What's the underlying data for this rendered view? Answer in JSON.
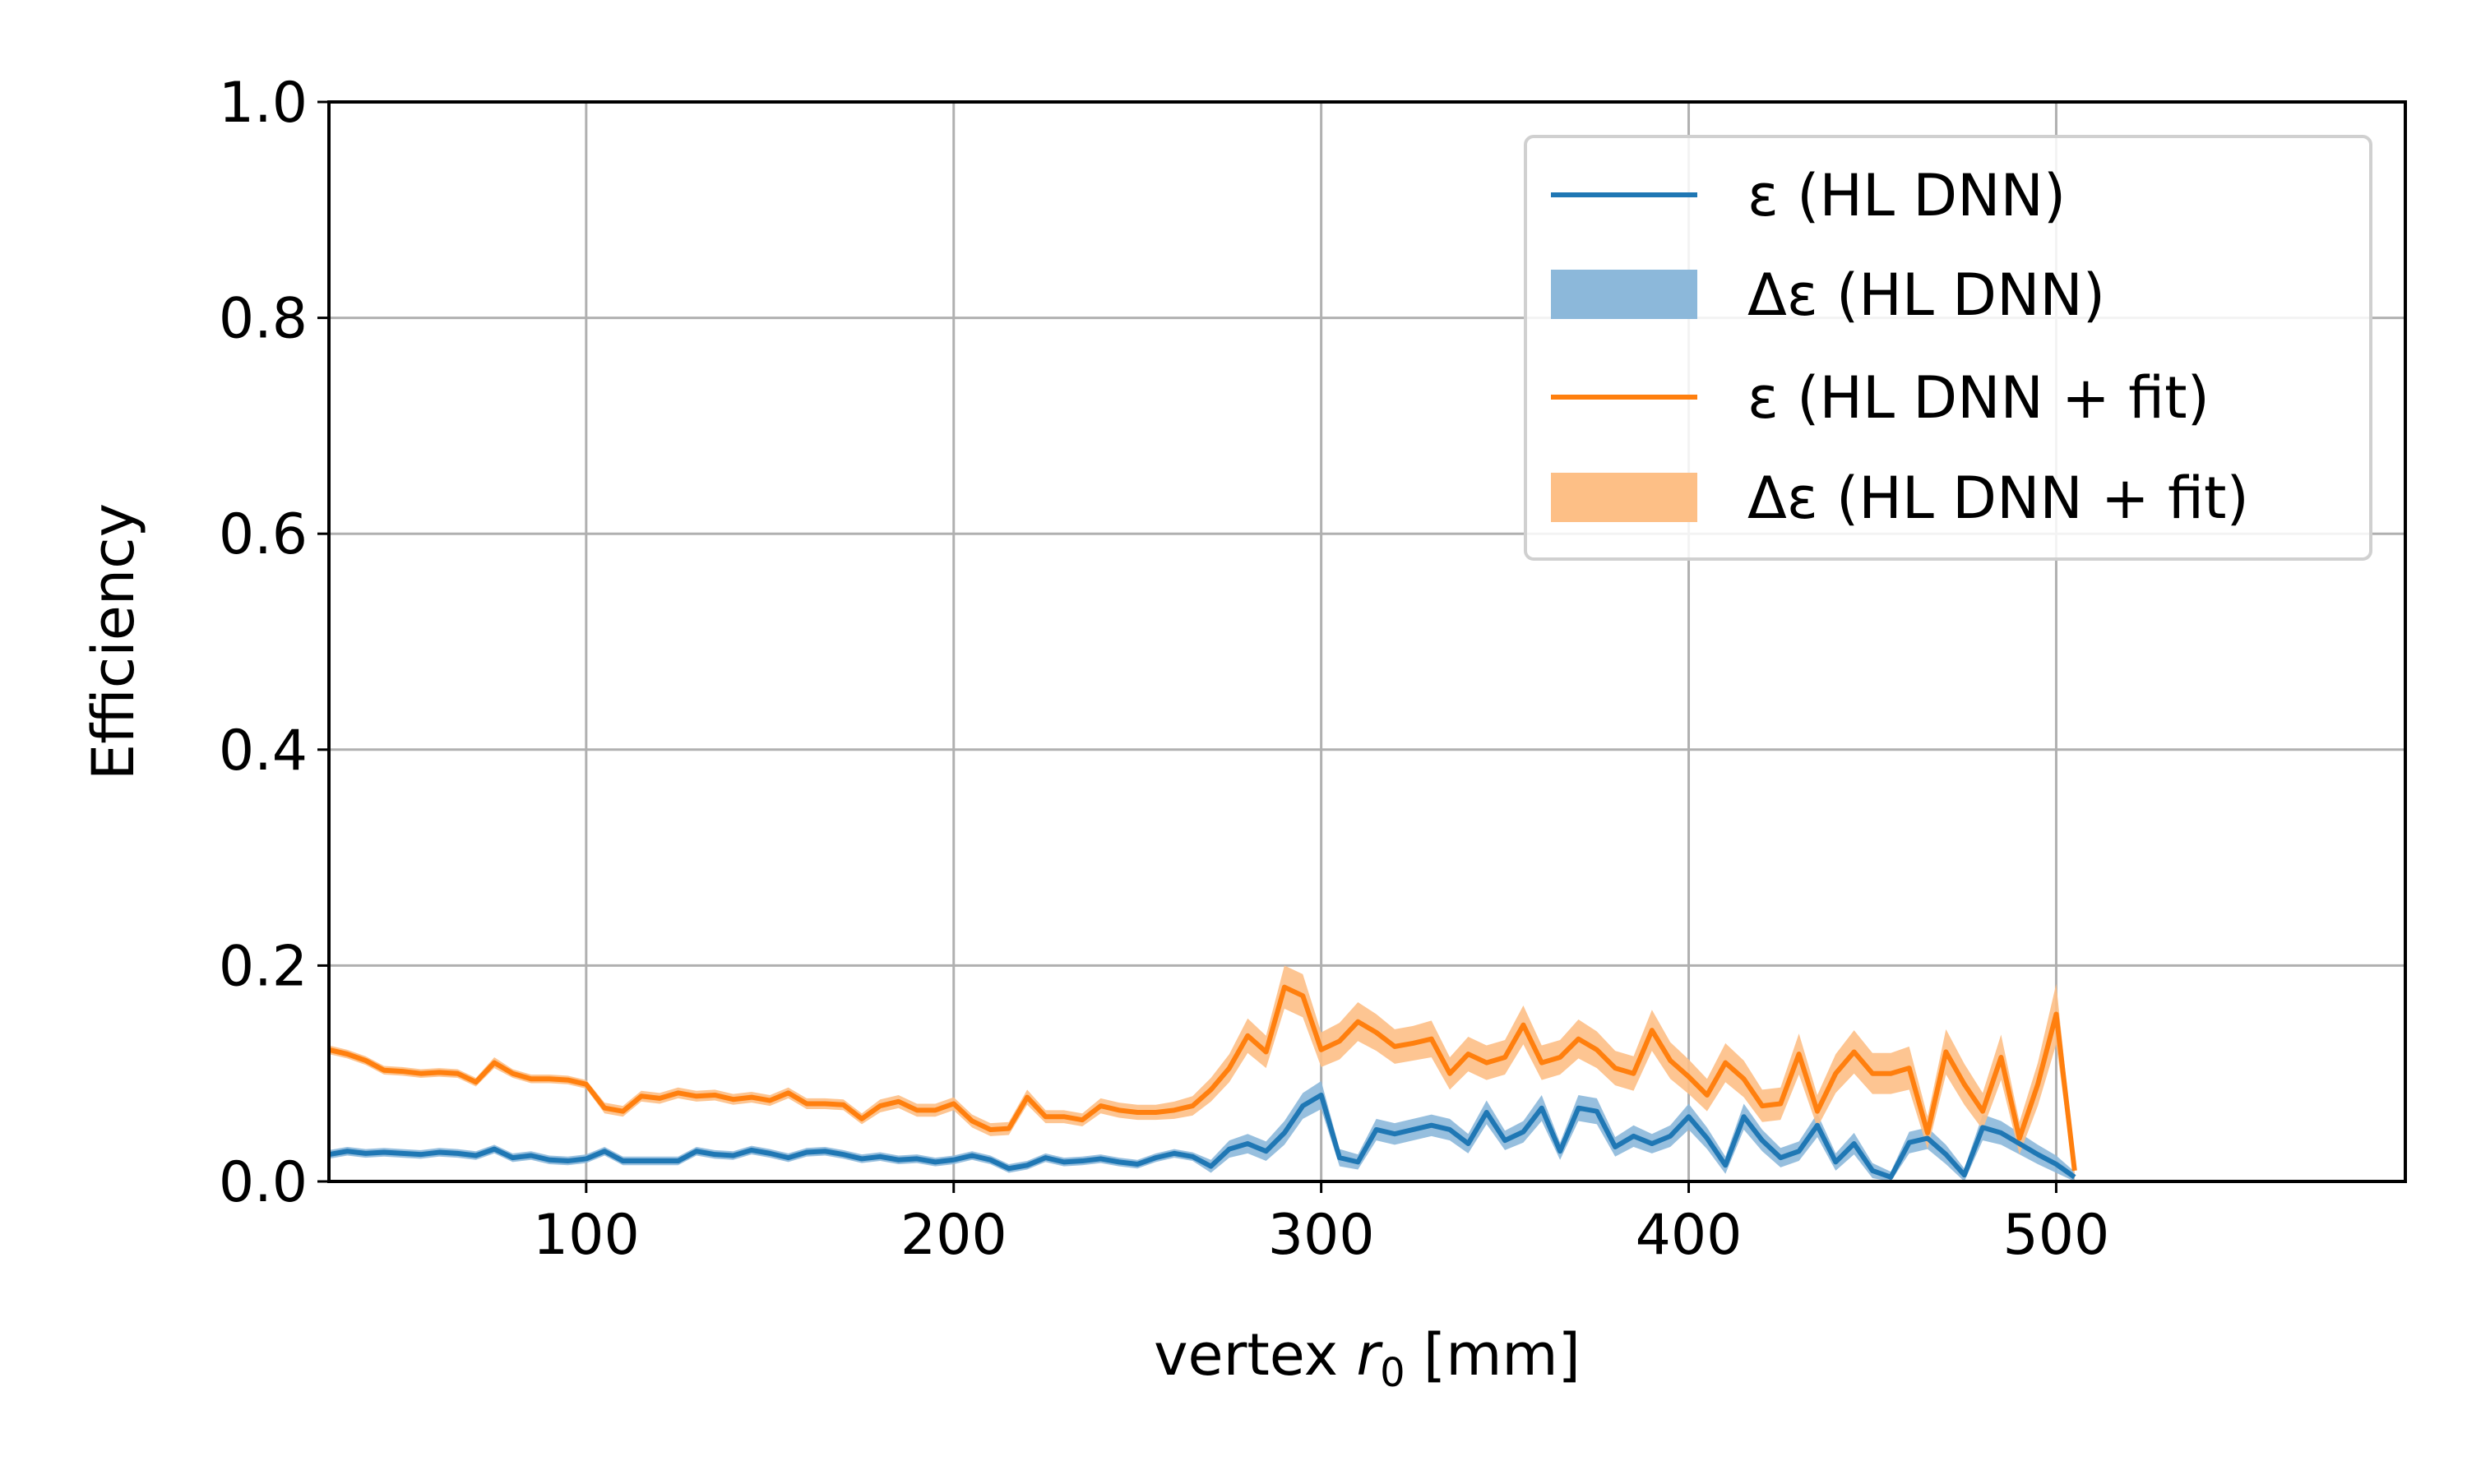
{
  "chart_data": {
    "type": "line",
    "title": "",
    "xlabel_prefix": "vertex ",
    "xlabel_var": "r",
    "xlabel_sub": "0",
    "xlabel_suffix": " [mm]",
    "ylabel": "Efficiency",
    "xlim": [
      30,
      595
    ],
    "ylim": [
      0,
      1
    ],
    "xticks": [
      100,
      200,
      300,
      400,
      500
    ],
    "xtick_labels": [
      "100",
      "200",
      "300",
      "400",
      "500"
    ],
    "yticks": [
      0,
      0.2,
      0.4,
      0.6,
      0.8,
      1.0
    ],
    "ytick_labels": [
      "0.0",
      "0.2",
      "0.4",
      "0.6",
      "0.8",
      "1.0"
    ],
    "grid": true,
    "legend_placement": "top-right",
    "x_start": 30,
    "x_step": 5,
    "series": [
      {
        "name": "ε (HL DNN)",
        "band_name": "Δε (HL DNN)",
        "color": "#1f77b4",
        "band_color": "#8cb8da",
        "values": [
          0.025,
          0.028,
          0.026,
          0.027,
          0.026,
          0.025,
          0.027,
          0.026,
          0.024,
          0.03,
          0.022,
          0.024,
          0.02,
          0.019,
          0.021,
          0.028,
          0.019,
          0.019,
          0.019,
          0.019,
          0.028,
          0.025,
          0.024,
          0.029,
          0.026,
          0.022,
          0.027,
          0.028,
          0.025,
          0.021,
          0.023,
          0.02,
          0.021,
          0.018,
          0.02,
          0.024,
          0.02,
          0.012,
          0.015,
          0.022,
          0.018,
          0.019,
          0.021,
          0.018,
          0.016,
          0.022,
          0.026,
          0.023,
          0.014,
          0.03,
          0.035,
          0.028,
          0.045,
          0.07,
          0.08,
          0.022,
          0.018,
          0.048,
          0.044,
          0.048,
          0.052,
          0.048,
          0.035,
          0.064,
          0.038,
          0.046,
          0.068,
          0.028,
          0.068,
          0.065,
          0.032,
          0.042,
          0.035,
          0.042,
          0.06,
          0.04,
          0.015,
          0.06,
          0.038,
          0.022,
          0.028,
          0.052,
          0.018,
          0.035,
          0.01,
          0.004,
          0.036,
          0.04,
          0.025,
          0.006,
          0.05,
          0.045,
          0.035,
          0.025,
          0.016,
          0.004
        ],
        "errors": [
          0.004,
          0.004,
          0.004,
          0.004,
          0.004,
          0.004,
          0.004,
          0.004,
          0.004,
          0.004,
          0.004,
          0.004,
          0.004,
          0.004,
          0.004,
          0.004,
          0.004,
          0.004,
          0.004,
          0.004,
          0.004,
          0.004,
          0.004,
          0.004,
          0.004,
          0.004,
          0.004,
          0.004,
          0.004,
          0.004,
          0.004,
          0.004,
          0.004,
          0.004,
          0.004,
          0.004,
          0.004,
          0.004,
          0.004,
          0.004,
          0.004,
          0.004,
          0.004,
          0.004,
          0.004,
          0.004,
          0.004,
          0.004,
          0.006,
          0.008,
          0.009,
          0.009,
          0.011,
          0.012,
          0.013,
          0.008,
          0.007,
          0.01,
          0.01,
          0.01,
          0.01,
          0.01,
          0.009,
          0.011,
          0.009,
          0.01,
          0.012,
          0.008,
          0.012,
          0.012,
          0.009,
          0.01,
          0.009,
          0.01,
          0.012,
          0.01,
          0.008,
          0.012,
          0.01,
          0.009,
          0.009,
          0.011,
          0.008,
          0.01,
          0.007,
          0.005,
          0.01,
          0.01,
          0.009,
          0.006,
          0.012,
          0.011,
          0.01,
          0.009,
          0.008,
          0.005
        ]
      },
      {
        "name": "ε (HL DNN + fit)",
        "band_name": "Δε (HL DNN + fit)",
        "color": "#ff7f0e",
        "band_color": "#fdbf86",
        "values": [
          0.122,
          0.118,
          0.112,
          0.103,
          0.102,
          0.1,
          0.101,
          0.1,
          0.092,
          0.11,
          0.1,
          0.095,
          0.095,
          0.094,
          0.09,
          0.068,
          0.065,
          0.079,
          0.077,
          0.082,
          0.079,
          0.08,
          0.076,
          0.078,
          0.075,
          0.082,
          0.072,
          0.072,
          0.071,
          0.058,
          0.07,
          0.074,
          0.066,
          0.066,
          0.072,
          0.056,
          0.048,
          0.049,
          0.078,
          0.06,
          0.06,
          0.057,
          0.07,
          0.066,
          0.064,
          0.064,
          0.066,
          0.07,
          0.085,
          0.105,
          0.135,
          0.12,
          0.18,
          0.172,
          0.122,
          0.13,
          0.148,
          0.138,
          0.125,
          0.128,
          0.132,
          0.1,
          0.118,
          0.11,
          0.115,
          0.145,
          0.11,
          0.115,
          0.132,
          0.122,
          0.105,
          0.1,
          0.14,
          0.112,
          0.097,
          0.08,
          0.11,
          0.095,
          0.07,
          0.072,
          0.118,
          0.065,
          0.1,
          0.12,
          0.1,
          0.1,
          0.105,
          0.045,
          0.12,
          0.09,
          0.065,
          0.115,
          0.04,
          0.09,
          0.155,
          0.01
        ],
        "errors": [
          0.004,
          0.004,
          0.004,
          0.004,
          0.004,
          0.004,
          0.004,
          0.004,
          0.004,
          0.005,
          0.004,
          0.004,
          0.004,
          0.004,
          0.004,
          0.005,
          0.005,
          0.005,
          0.005,
          0.005,
          0.005,
          0.005,
          0.005,
          0.005,
          0.005,
          0.005,
          0.005,
          0.005,
          0.005,
          0.005,
          0.006,
          0.006,
          0.006,
          0.006,
          0.006,
          0.006,
          0.006,
          0.006,
          0.007,
          0.006,
          0.006,
          0.006,
          0.007,
          0.007,
          0.007,
          0.007,
          0.008,
          0.009,
          0.011,
          0.013,
          0.016,
          0.015,
          0.02,
          0.02,
          0.016,
          0.017,
          0.018,
          0.017,
          0.016,
          0.016,
          0.017,
          0.015,
          0.016,
          0.016,
          0.016,
          0.018,
          0.016,
          0.016,
          0.018,
          0.017,
          0.016,
          0.016,
          0.019,
          0.017,
          0.016,
          0.015,
          0.018,
          0.017,
          0.015,
          0.015,
          0.019,
          0.015,
          0.018,
          0.02,
          0.019,
          0.019,
          0.02,
          0.015,
          0.021,
          0.019,
          0.017,
          0.021,
          0.015,
          0.02,
          0.028,
          0.01
        ]
      }
    ]
  }
}
